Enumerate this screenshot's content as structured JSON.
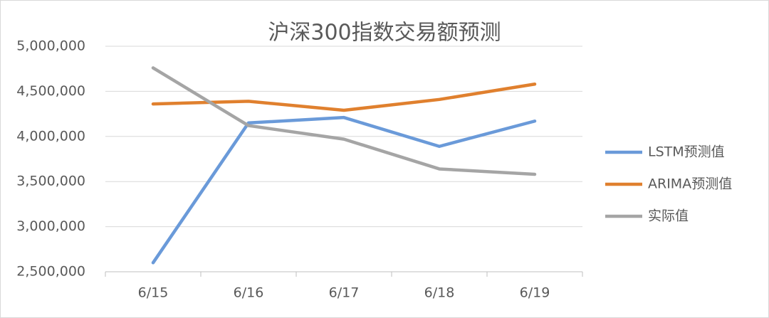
{
  "chart_data": {
    "type": "line",
    "title": "沪深300指数交易额预测",
    "categories": [
      "6/15",
      "6/16",
      "6/17",
      "6/18",
      "6/19"
    ],
    "series": [
      {
        "name": "LSTM预测值",
        "color": "#6a9ad9",
        "values": [
          2600000,
          4150000,
          4210000,
          3890000,
          4170000
        ]
      },
      {
        "name": "ARIMA预测值",
        "color": "#e0802e",
        "values": [
          4360000,
          4390000,
          4290000,
          4410000,
          4580000
        ]
      },
      {
        "name": "实际值",
        "color": "#a5a5a5",
        "values": [
          4760000,
          4120000,
          3970000,
          3640000,
          3580000
        ]
      }
    ],
    "ylim": [
      2500000,
      5000000
    ],
    "yticks": [
      {
        "value": 2500000,
        "label": "2,500,000"
      },
      {
        "value": 3000000,
        "label": "3,000,000"
      },
      {
        "value": 3500000,
        "label": "3,500,000"
      },
      {
        "value": 4000000,
        "label": "4,000,000"
      },
      {
        "value": 4500000,
        "label": "4,500,000"
      },
      {
        "value": 5000000,
        "label": "5,000,000"
      }
    ],
    "grid": true,
    "legend": "right"
  }
}
